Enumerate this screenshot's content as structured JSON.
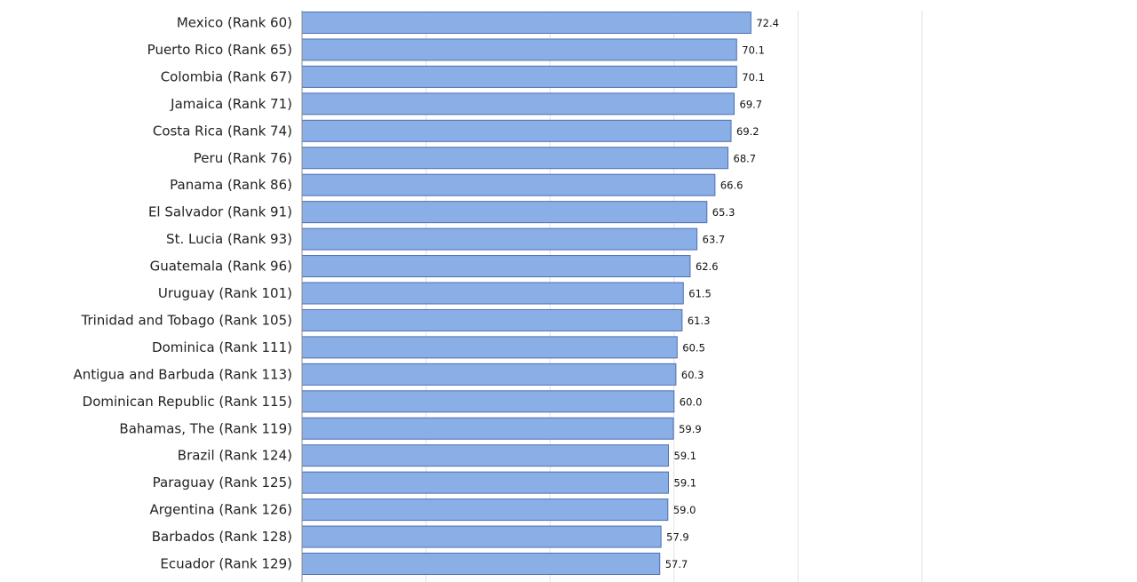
{
  "chart_data": {
    "type": "bar",
    "orientation": "horizontal",
    "categories": [
      "Mexico (Rank 60)",
      "Puerto Rico (Rank 65)",
      "Colombia (Rank 67)",
      "Jamaica (Rank 71)",
      "Costa Rica (Rank 74)",
      "Peru (Rank 76)",
      "Panama (Rank 86)",
      "El Salvador (Rank 91)",
      "St. Lucia (Rank 93)",
      "Guatemala (Rank 96)",
      "Uruguay (Rank 101)",
      "Trinidad and Tobago (Rank 105)",
      "Dominica (Rank 111)",
      "Antigua and Barbuda (Rank 113)",
      "Dominican Republic (Rank 115)",
      "Bahamas, The (Rank 119)",
      "Brazil (Rank 124)",
      "Paraguay (Rank 125)",
      "Argentina (Rank 126)",
      "Barbados (Rank 128)",
      "Ecuador (Rank 129)"
    ],
    "values": [
      72.4,
      70.1,
      70.1,
      69.7,
      69.2,
      68.7,
      66.6,
      65.3,
      63.7,
      62.6,
      61.5,
      61.3,
      60.5,
      60.3,
      60.0,
      59.9,
      59.1,
      59.1,
      59.0,
      57.9,
      57.7
    ],
    "value_labels": [
      "72.4",
      "70.1",
      "70.1",
      "69.7",
      "69.2",
      "68.7",
      "66.6",
      "65.3",
      "63.7",
      "62.6",
      "61.5",
      "61.3",
      "60.5",
      "60.3",
      "60.0",
      "59.9",
      "59.1",
      "59.1",
      "59.0",
      "57.9",
      "57.7"
    ],
    "xlim": [
      0,
      100
    ],
    "grid_step": 20,
    "grid": true,
    "legend": false,
    "bar_color": "#8aaee6",
    "bar_edge_color": "#4e6fb0"
  }
}
